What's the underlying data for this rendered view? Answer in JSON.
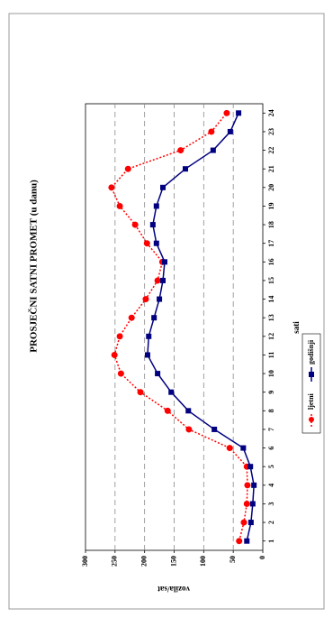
{
  "chart_data": {
    "type": "line",
    "title": "PROSJEČNI SATNI PROMET (u danu)",
    "x_label": "sati",
    "y_label": "vozila/sat",
    "x": [
      1,
      2,
      3,
      4,
      5,
      6,
      7,
      8,
      9,
      10,
      11,
      12,
      13,
      14,
      15,
      16,
      17,
      18,
      19,
      20,
      21,
      22,
      23,
      24
    ],
    "xlim": [
      0.5,
      24.5
    ],
    "xticks": [
      1,
      2,
      3,
      4,
      5,
      6,
      7,
      8,
      9,
      10,
      11,
      12,
      13,
      14,
      15,
      16,
      17,
      18,
      19,
      20,
      21,
      22,
      23,
      24
    ],
    "ylim": [
      0,
      300
    ],
    "yticks": [
      0,
      50,
      100,
      150,
      200,
      250,
      300
    ],
    "grid": true,
    "series": [
      {
        "name": "ljetni",
        "color": "#ff0000",
        "style": "dotted",
        "marker": "circle",
        "values": [
          40,
          32,
          27,
          26,
          27,
          56,
          125,
          161,
          207,
          240,
          251,
          242,
          222,
          198,
          178,
          170,
          196,
          216,
          242,
          256,
          228,
          139,
          87,
          61
        ]
      },
      {
        "name": "godišnji",
        "color": "#000080",
        "style": "solid",
        "marker": "square",
        "values": [
          27,
          20,
          17,
          15,
          21,
          33,
          82,
          126,
          155,
          178,
          195,
          193,
          184,
          175,
          169,
          166,
          180,
          186,
          180,
          169,
          131,
          84,
          55,
          41
        ]
      }
    ]
  }
}
